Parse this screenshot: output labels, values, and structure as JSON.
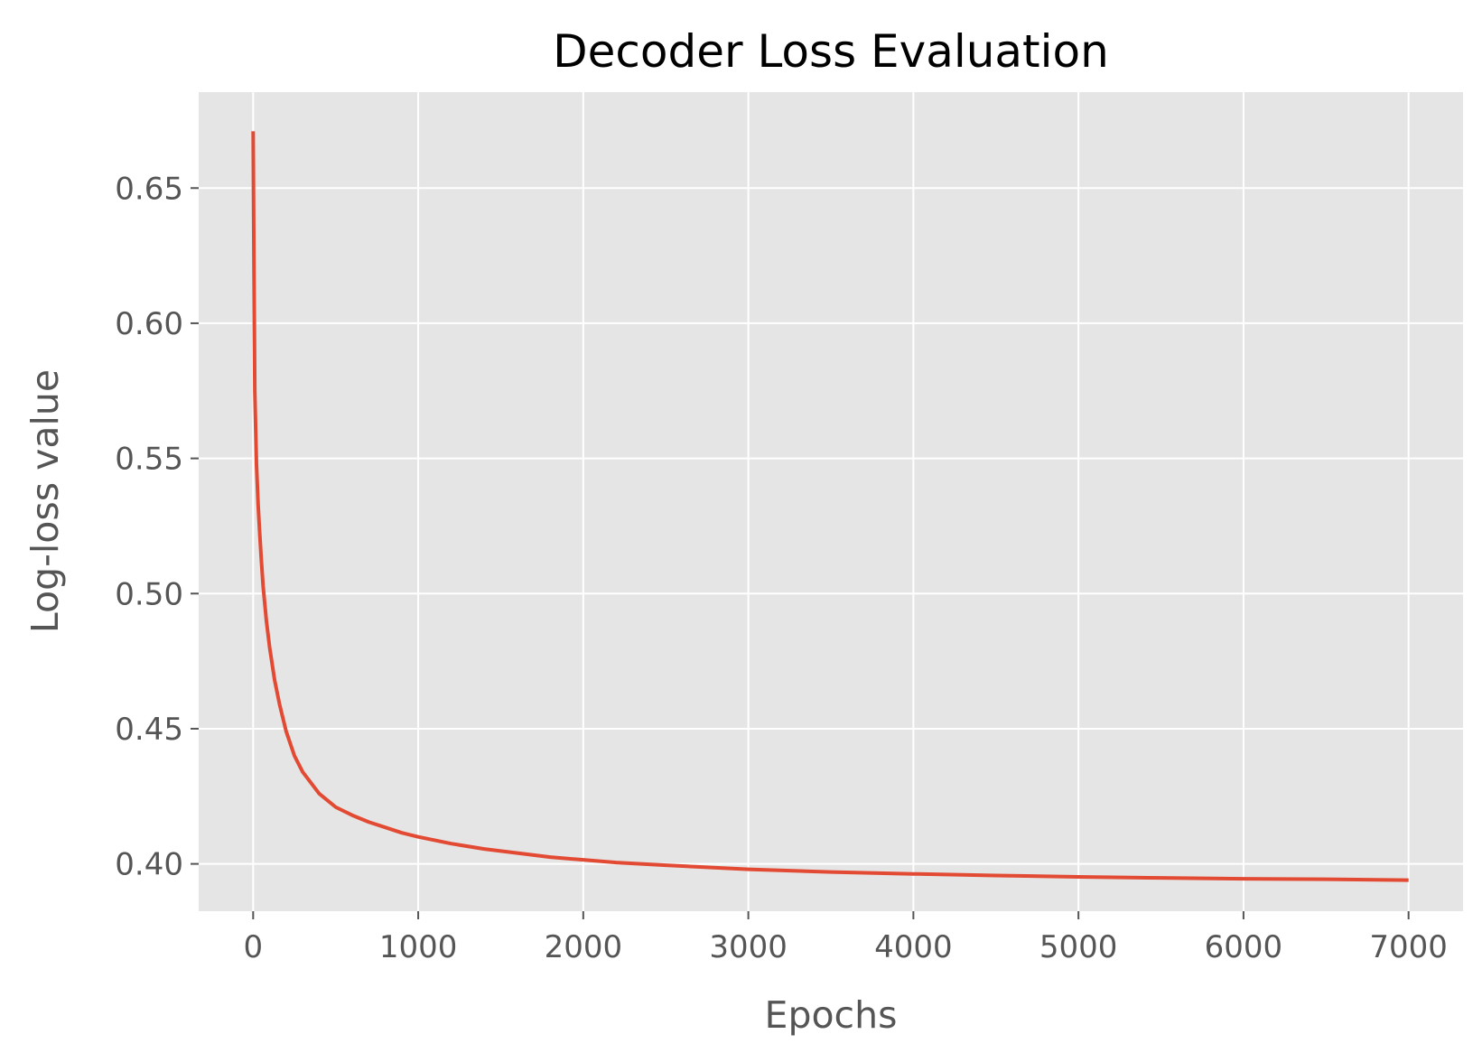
{
  "chart_data": {
    "type": "line",
    "title": "Decoder Loss Evaluation",
    "xlabel": "Epochs",
    "ylabel": "Log-loss value",
    "xlim": [
      -330,
      7330
    ],
    "ylim": [
      0.3825,
      0.6855
    ],
    "xticks": [
      0,
      1000,
      2000,
      3000,
      4000,
      5000,
      6000,
      7000
    ],
    "yticks": [
      0.4,
      0.45,
      0.5,
      0.55,
      0.6,
      0.65
    ],
    "grid": true,
    "style": "ggplot",
    "series": [
      {
        "color": "#E24A33",
        "x": [
          0,
          5,
          10,
          20,
          30,
          40,
          50,
          60,
          80,
          100,
          130,
          160,
          200,
          250,
          300,
          350,
          400,
          500,
          600,
          700,
          800,
          900,
          1000,
          1200,
          1400,
          1600,
          1800,
          2000,
          2200,
          2500,
          3000,
          3500,
          4000,
          4500,
          5000,
          5500,
          6000,
          6500,
          7000
        ],
        "y": [
          0.671,
          0.62,
          0.575,
          0.548,
          0.533,
          0.522,
          0.512,
          0.503,
          0.49,
          0.48,
          0.468,
          0.459,
          0.449,
          0.44,
          0.434,
          0.43,
          0.426,
          0.421,
          0.418,
          0.4155,
          0.4135,
          0.4115,
          0.41,
          0.4075,
          0.4055,
          0.404,
          0.4025,
          0.4015,
          0.4005,
          0.3995,
          0.398,
          0.397,
          0.3963,
          0.3957,
          0.3952,
          0.3948,
          0.3945,
          0.3943,
          0.394
        ]
      }
    ]
  }
}
